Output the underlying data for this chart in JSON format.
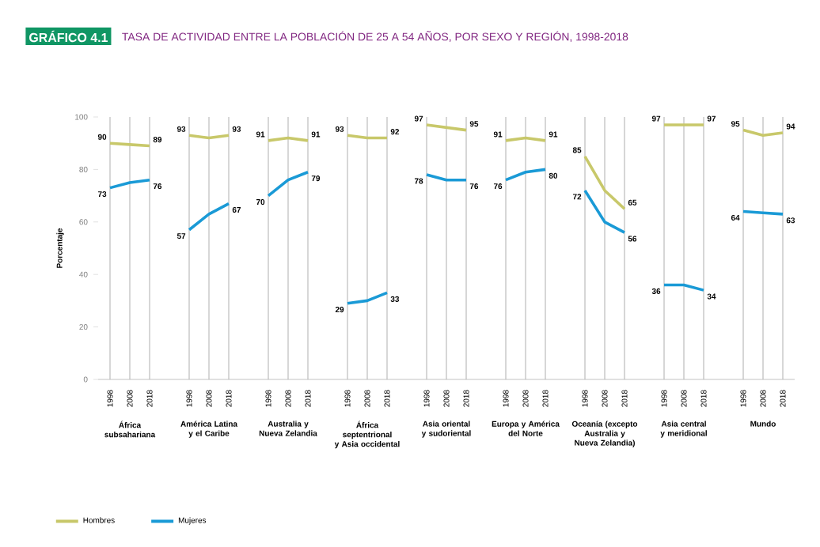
{
  "chart_data": {
    "type": "line",
    "title": "GRÁFICO 4.1",
    "subtitle": "TASA DE ACTIVIDAD ENTRE LA POBLACIÓN DE 25 A 54 AÑOS, POR SEXO Y REGIÓN, 1998-2018",
    "ylabel": "Porcentaje",
    "categories": [
      "1998",
      "2008",
      "2018",
      null,
      "1998",
      "2008",
      "2018",
      null,
      "1998",
      "2008",
      "2018",
      null,
      "1998",
      "2008",
      "2018",
      null,
      "1998",
      "2008",
      "2018",
      null,
      "1998",
      "2008",
      "2018",
      null,
      "1998",
      "2008",
      "2018",
      null,
      "1998",
      "2008",
      "2018",
      null,
      "1998",
      "2008",
      "2018"
    ],
    "annotations": [
      "África subsahariana",
      "América Latina y el Caribe",
      "Australia y Nueva Zelandia",
      "África septentrional y Asia occidental",
      "Asia oriental y sudoriental",
      "Europa y América del Norte",
      "Oceanía (excepto Australia y Nueva Zelandia)",
      "Asia central y meridional",
      "Mundo"
    ],
    "series": [
      {
        "name": "Hombres",
        "color": "#c8c86a",
        "values": [
          90,
          89.5,
          89,
          null,
          93,
          92,
          93,
          null,
          91,
          92,
          91,
          null,
          93,
          92,
          92,
          null,
          97,
          96,
          95,
          null,
          91,
          92,
          91,
          null,
          85,
          72,
          65,
          null,
          97,
          97,
          97,
          null,
          95,
          93,
          94
        ],
        "value_labels": [
          "90",
          null,
          "89",
          null,
          "93",
          null,
          "93",
          null,
          "91",
          null,
          "91",
          null,
          "93",
          null,
          "92",
          null,
          "97",
          null,
          "95",
          null,
          "91",
          null,
          "91",
          null,
          "85",
          null,
          "65",
          null,
          "97",
          null,
          "97",
          null,
          "95",
          null,
          "94"
        ]
      },
      {
        "name": "Mujeres",
        "color": "#1a9ad6",
        "values": [
          73,
          75,
          76,
          null,
          57,
          63,
          67,
          null,
          70,
          76,
          79,
          null,
          29,
          30,
          33,
          null,
          78,
          76,
          76,
          null,
          76,
          79,
          80,
          null,
          72,
          60,
          56,
          null,
          36,
          36,
          34,
          null,
          64,
          63.5,
          63
        ],
        "value_labels": [
          "73",
          null,
          "76",
          null,
          "57",
          null,
          "67",
          null,
          "70",
          null,
          "79",
          null,
          "29",
          null,
          "33",
          null,
          "78",
          null,
          "76",
          null,
          "76",
          null,
          "80",
          null,
          "72",
          null,
          "56",
          null,
          "36",
          null,
          "34",
          null,
          "64",
          null,
          "63"
        ]
      }
    ],
    "ylim": [
      0,
      100
    ],
    "yticks": [
      0,
      20,
      40,
      60,
      80,
      100
    ],
    "grid": "x",
    "legend": "bottom left",
    "line_style": "solid",
    "marker": "none"
  }
}
